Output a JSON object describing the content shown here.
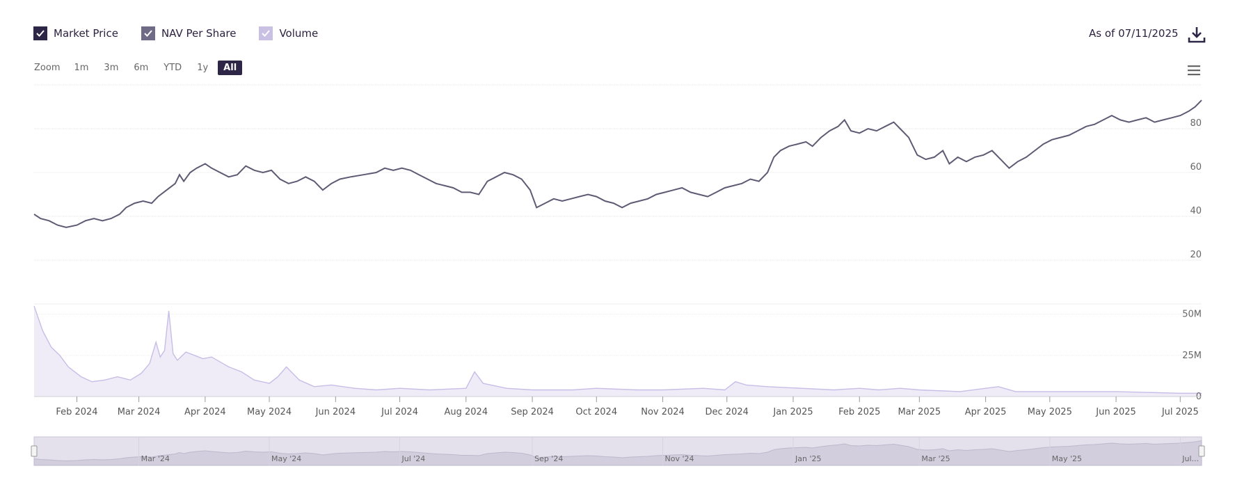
{
  "legend": [
    {
      "label": "Market Price",
      "color": "#2e2646",
      "checked": true
    },
    {
      "label": "NAV Per Share",
      "color": "#6f6a86",
      "checked": true
    },
    {
      "label": "Volume",
      "color": "#c9c0e4",
      "checked": true
    }
  ],
  "as_of": "As of 07/11/2025",
  "zoom": {
    "label": "Zoom",
    "buttons": [
      "1m",
      "3m",
      "6m",
      "YTD",
      "1y",
      "All"
    ],
    "selected": "All"
  },
  "colors": {
    "price": "#5f5a73",
    "volume_fill": "#efecf8",
    "volume_line": "#c7bde6",
    "active": "#2e2646"
  },
  "chart_data": {
    "type": "line",
    "price_axis": {
      "ticks": [
        20,
        40,
        60,
        80
      ],
      "range": [
        0,
        100
      ]
    },
    "volume_axis": {
      "ticks": [
        0,
        25,
        50
      ],
      "tick_labels": [
        "0",
        "25M",
        "50M"
      ],
      "range": [
        0,
        60
      ],
      "unit": "M"
    },
    "x_axis": {
      "range": [
        "2024-01-12",
        "2025-07-11"
      ],
      "ticks": [
        "Feb 2024",
        "Mar 2024",
        "Apr 2024",
        "May 2024",
        "Jun 2024",
        "Jul 2024",
        "Aug 2024",
        "Sep 2024",
        "Oct 2024",
        "Nov 2024",
        "Dec 2024",
        "Jan 2025",
        "Feb 2025",
        "Mar 2025",
        "Apr 2025",
        "May 2025",
        "Jun 2025",
        "Jul 2025"
      ],
      "tick_dates": [
        "2024-02-01",
        "2024-03-01",
        "2024-04-01",
        "2024-05-01",
        "2024-06-01",
        "2024-07-01",
        "2024-08-01",
        "2024-09-01",
        "2024-10-01",
        "2024-11-01",
        "2024-12-01",
        "2025-01-01",
        "2025-02-01",
        "2025-03-01",
        "2025-04-01",
        "2025-05-01",
        "2025-06-01",
        "2025-07-01"
      ]
    },
    "navigator_ticks": [
      "Mar '24",
      "May '24",
      "Jul '24",
      "Sep '24",
      "Nov '24",
      "Jan '25",
      "Mar '25",
      "May '25",
      "Jul..."
    ],
    "navigator_tick_dates": [
      "2024-03-01",
      "2024-05-01",
      "2024-07-01",
      "2024-09-01",
      "2024-11-01",
      "2025-01-01",
      "2025-03-01",
      "2025-05-01",
      "2025-07-01"
    ],
    "series": [
      {
        "name": "Market Price",
        "points": [
          [
            "2024-01-12",
            41
          ],
          [
            "2024-01-15",
            39
          ],
          [
            "2024-01-19",
            38
          ],
          [
            "2024-01-23",
            36
          ],
          [
            "2024-01-27",
            35
          ],
          [
            "2024-02-01",
            36
          ],
          [
            "2024-02-05",
            38
          ],
          [
            "2024-02-09",
            39
          ],
          [
            "2024-02-13",
            38
          ],
          [
            "2024-02-17",
            39
          ],
          [
            "2024-02-21",
            41
          ],
          [
            "2024-02-24",
            44
          ],
          [
            "2024-02-28",
            46
          ],
          [
            "2024-03-03",
            47
          ],
          [
            "2024-03-07",
            46
          ],
          [
            "2024-03-10",
            49
          ],
          [
            "2024-03-14",
            52
          ],
          [
            "2024-03-18",
            55
          ],
          [
            "2024-03-20",
            59
          ],
          [
            "2024-03-22",
            56
          ],
          [
            "2024-03-25",
            60
          ],
          [
            "2024-03-28",
            62
          ],
          [
            "2024-04-01",
            64
          ],
          [
            "2024-04-04",
            62
          ],
          [
            "2024-04-08",
            60
          ],
          [
            "2024-04-12",
            58
          ],
          [
            "2024-04-16",
            59
          ],
          [
            "2024-04-20",
            63
          ],
          [
            "2024-04-24",
            61
          ],
          [
            "2024-04-28",
            60
          ],
          [
            "2024-05-02",
            61
          ],
          [
            "2024-05-06",
            57
          ],
          [
            "2024-05-10",
            55
          ],
          [
            "2024-05-14",
            56
          ],
          [
            "2024-05-18",
            58
          ],
          [
            "2024-05-22",
            56
          ],
          [
            "2024-05-26",
            52
          ],
          [
            "2024-05-30",
            55
          ],
          [
            "2024-06-03",
            57
          ],
          [
            "2024-06-08",
            58
          ],
          [
            "2024-06-14",
            59
          ],
          [
            "2024-06-20",
            60
          ],
          [
            "2024-06-24",
            62
          ],
          [
            "2024-06-28",
            61
          ],
          [
            "2024-07-02",
            62
          ],
          [
            "2024-07-06",
            61
          ],
          [
            "2024-07-10",
            59
          ],
          [
            "2024-07-14",
            57
          ],
          [
            "2024-07-18",
            55
          ],
          [
            "2024-07-22",
            54
          ],
          [
            "2024-07-26",
            53
          ],
          [
            "2024-07-30",
            51
          ],
          [
            "2024-08-03",
            51
          ],
          [
            "2024-08-07",
            50
          ],
          [
            "2024-08-11",
            56
          ],
          [
            "2024-08-15",
            58
          ],
          [
            "2024-08-19",
            60
          ],
          [
            "2024-08-23",
            59
          ],
          [
            "2024-08-27",
            57
          ],
          [
            "2024-08-31",
            52
          ],
          [
            "2024-09-03",
            44
          ],
          [
            "2024-09-07",
            46
          ],
          [
            "2024-09-11",
            48
          ],
          [
            "2024-09-15",
            47
          ],
          [
            "2024-09-19",
            48
          ],
          [
            "2024-09-23",
            49
          ],
          [
            "2024-09-27",
            50
          ],
          [
            "2024-10-01",
            49
          ],
          [
            "2024-10-05",
            47
          ],
          [
            "2024-10-09",
            46
          ],
          [
            "2024-10-13",
            44
          ],
          [
            "2024-10-17",
            46
          ],
          [
            "2024-10-21",
            47
          ],
          [
            "2024-10-25",
            48
          ],
          [
            "2024-10-29",
            50
          ],
          [
            "2024-11-02",
            51
          ],
          [
            "2024-11-06",
            52
          ],
          [
            "2024-11-10",
            53
          ],
          [
            "2024-11-14",
            51
          ],
          [
            "2024-11-18",
            50
          ],
          [
            "2024-11-22",
            49
          ],
          [
            "2024-11-26",
            51
          ],
          [
            "2024-11-30",
            53
          ],
          [
            "2024-12-04",
            54
          ],
          [
            "2024-12-08",
            55
          ],
          [
            "2024-12-12",
            57
          ],
          [
            "2024-12-16",
            56
          ],
          [
            "2024-12-20",
            60
          ],
          [
            "2024-12-23",
            67
          ],
          [
            "2024-12-26",
            70
          ],
          [
            "2024-12-30",
            72
          ],
          [
            "2025-01-03",
            73
          ],
          [
            "2025-01-07",
            74
          ],
          [
            "2025-01-10",
            72
          ],
          [
            "2025-01-14",
            76
          ],
          [
            "2025-01-18",
            79
          ],
          [
            "2025-01-22",
            81
          ],
          [
            "2025-01-25",
            84
          ],
          [
            "2025-01-28",
            79
          ],
          [
            "2025-02-01",
            78
          ],
          [
            "2025-02-05",
            80
          ],
          [
            "2025-02-09",
            79
          ],
          [
            "2025-02-13",
            81
          ],
          [
            "2025-02-17",
            83
          ],
          [
            "2025-02-20",
            80
          ],
          [
            "2025-02-24",
            76
          ],
          [
            "2025-02-28",
            68
          ],
          [
            "2025-03-04",
            66
          ],
          [
            "2025-03-08",
            67
          ],
          [
            "2025-03-12",
            70
          ],
          [
            "2025-03-15",
            64
          ],
          [
            "2025-03-19",
            67
          ],
          [
            "2025-03-23",
            65
          ],
          [
            "2025-03-27",
            67
          ],
          [
            "2025-03-31",
            68
          ],
          [
            "2025-04-04",
            70
          ],
          [
            "2025-04-08",
            66
          ],
          [
            "2025-04-12",
            62
          ],
          [
            "2025-04-16",
            65
          ],
          [
            "2025-04-20",
            67
          ],
          [
            "2025-04-24",
            70
          ],
          [
            "2025-04-28",
            73
          ],
          [
            "2025-05-02",
            75
          ],
          [
            "2025-05-06",
            76
          ],
          [
            "2025-05-10",
            77
          ],
          [
            "2025-05-14",
            79
          ],
          [
            "2025-05-18",
            81
          ],
          [
            "2025-05-22",
            82
          ],
          [
            "2025-05-26",
            84
          ],
          [
            "2025-05-30",
            86
          ],
          [
            "2025-06-03",
            84
          ],
          [
            "2025-06-07",
            83
          ],
          [
            "2025-06-11",
            84
          ],
          [
            "2025-06-15",
            85
          ],
          [
            "2025-06-19",
            83
          ],
          [
            "2025-06-23",
            84
          ],
          [
            "2025-06-27",
            85
          ],
          [
            "2025-07-01",
            86
          ],
          [
            "2025-07-05",
            88
          ],
          [
            "2025-07-08",
            90
          ],
          [
            "2025-07-11",
            93
          ]
        ]
      },
      {
        "name": "Volume",
        "points": [
          [
            "2024-01-12",
            55
          ],
          [
            "2024-01-16",
            40
          ],
          [
            "2024-01-20",
            30
          ],
          [
            "2024-01-24",
            25
          ],
          [
            "2024-01-28",
            18
          ],
          [
            "2024-02-03",
            12
          ],
          [
            "2024-02-08",
            9
          ],
          [
            "2024-02-14",
            10
          ],
          [
            "2024-02-20",
            12
          ],
          [
            "2024-02-26",
            10
          ],
          [
            "2024-03-02",
            14
          ],
          [
            "2024-03-06",
            20
          ],
          [
            "2024-03-09",
            33
          ],
          [
            "2024-03-11",
            24
          ],
          [
            "2024-03-13",
            28
          ],
          [
            "2024-03-15",
            52
          ],
          [
            "2024-03-17",
            26
          ],
          [
            "2024-03-19",
            22
          ],
          [
            "2024-03-23",
            27
          ],
          [
            "2024-03-27",
            25
          ],
          [
            "2024-03-31",
            23
          ],
          [
            "2024-04-04",
            24
          ],
          [
            "2024-04-08",
            21
          ],
          [
            "2024-04-12",
            18
          ],
          [
            "2024-04-18",
            15
          ],
          [
            "2024-04-24",
            10
          ],
          [
            "2024-05-01",
            8
          ],
          [
            "2024-05-05",
            12
          ],
          [
            "2024-05-09",
            18
          ],
          [
            "2024-05-15",
            10
          ],
          [
            "2024-05-22",
            6
          ],
          [
            "2024-05-30",
            7
          ],
          [
            "2024-06-10",
            5
          ],
          [
            "2024-06-20",
            4
          ],
          [
            "2024-07-01",
            5
          ],
          [
            "2024-07-15",
            4
          ],
          [
            "2024-08-01",
            5
          ],
          [
            "2024-08-05",
            15
          ],
          [
            "2024-08-09",
            8
          ],
          [
            "2024-08-20",
            5
          ],
          [
            "2024-09-01",
            4
          ],
          [
            "2024-09-20",
            4
          ],
          [
            "2024-10-01",
            5
          ],
          [
            "2024-10-20",
            4
          ],
          [
            "2024-11-01",
            4
          ],
          [
            "2024-11-20",
            5
          ],
          [
            "2024-11-30",
            4
          ],
          [
            "2024-12-05",
            9
          ],
          [
            "2024-12-10",
            7
          ],
          [
            "2024-12-20",
            6
          ],
          [
            "2025-01-05",
            5
          ],
          [
            "2025-01-20",
            4
          ],
          [
            "2025-02-01",
            5
          ],
          [
            "2025-02-10",
            4
          ],
          [
            "2025-02-20",
            5
          ],
          [
            "2025-03-01",
            4
          ],
          [
            "2025-03-20",
            3
          ],
          [
            "2025-04-07",
            6
          ],
          [
            "2025-04-15",
            3
          ],
          [
            "2025-05-01",
            3
          ],
          [
            "2025-06-01",
            3
          ],
          [
            "2025-07-01",
            2
          ],
          [
            "2025-07-11",
            2
          ]
        ]
      }
    ]
  }
}
